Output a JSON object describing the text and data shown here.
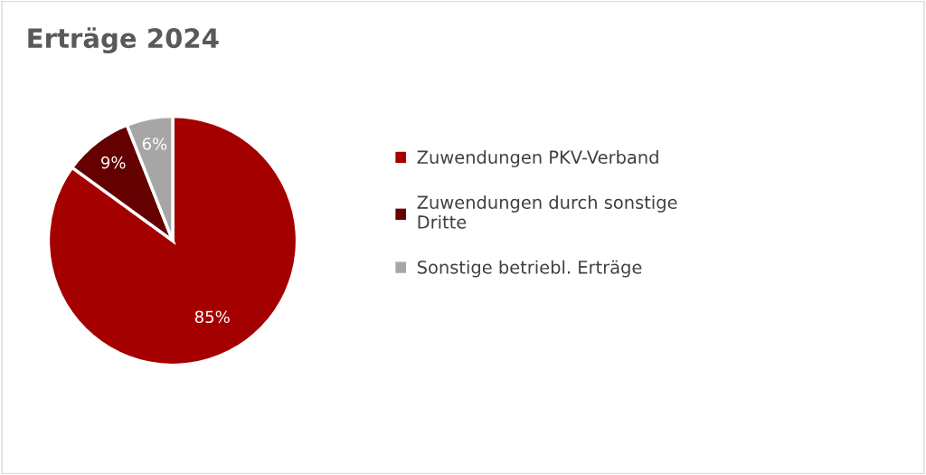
{
  "chart_data": {
    "type": "pie",
    "title": "Erträge 2024",
    "categories": [
      "Zuwendungen PKV-Verband",
      "Zuwendungen durch sonstige Dritte",
      "Sonstige betriebl. Erträge"
    ],
    "values": [
      85,
      9,
      6
    ],
    "colors": [
      "#a50000",
      "#640000",
      "#a6a6a6"
    ],
    "value_labels": [
      "85%",
      "9%",
      "6%"
    ],
    "legend": "right"
  }
}
